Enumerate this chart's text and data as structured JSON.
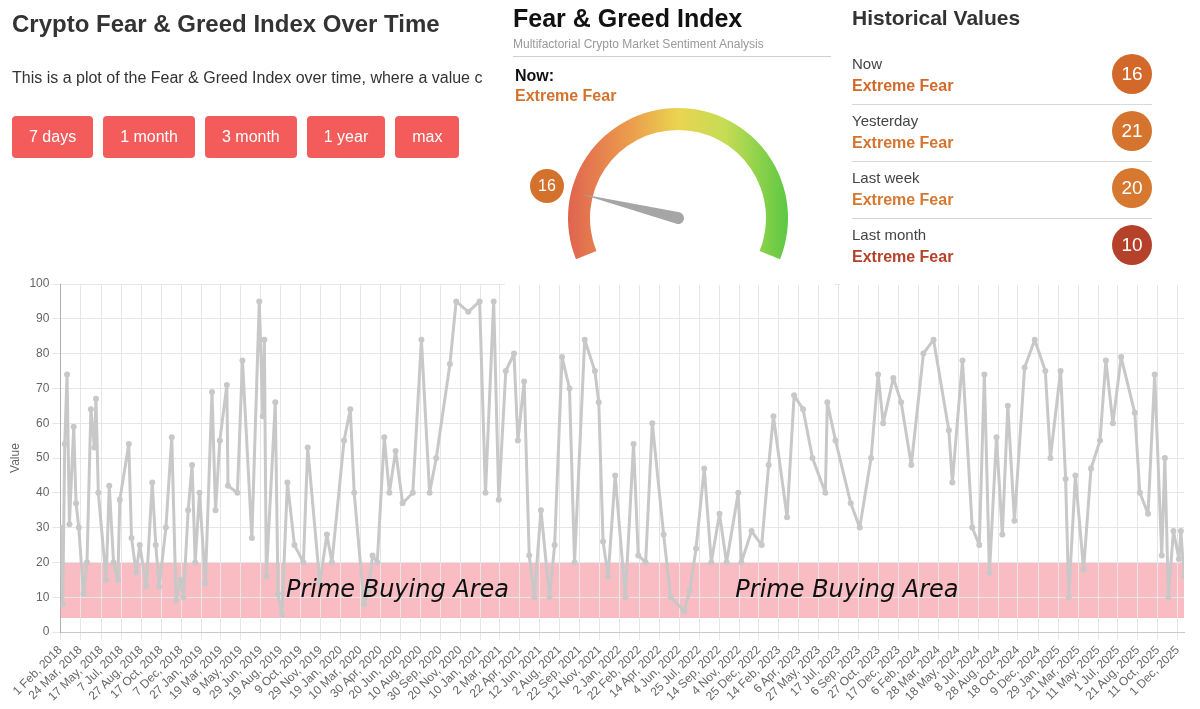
{
  "chart_data": [
    {
      "type": "line",
      "title": "Crypto Fear & Greed Index Over Time",
      "subtitle": "This is a plot of the Fear & Greed Index over time, where a value c",
      "ylabel": "Value",
      "x": [
        "2018-02-01",
        "2018-02-07",
        "2018-02-12",
        "2018-02-18",
        "2018-02-24",
        "2018-03-07",
        "2018-03-13",
        "2018-03-20",
        "2018-04-01",
        "2018-04-10",
        "2018-04-20",
        "2018-04-29",
        "2018-05-03",
        "2018-05-09",
        "2018-05-29",
        "2018-06-06",
        "2018-06-17",
        "2018-06-28",
        "2018-07-03",
        "2018-07-26",
        "2018-08-02",
        "2018-08-14",
        "2018-08-23",
        "2018-09-09",
        "2018-09-24",
        "2018-10-03",
        "2018-10-12",
        "2018-10-29",
        "2018-11-13",
        "2018-11-24",
        "2018-12-05",
        "2018-12-13",
        "2018-12-25",
        "2019-01-04",
        "2019-01-12",
        "2019-01-23",
        "2019-02-07",
        "2019-02-24",
        "2019-03-05",
        "2019-03-16",
        "2019-04-03",
        "2019-04-06",
        "2019-04-30",
        "2019-05-13",
        "2019-06-06",
        "2019-06-25",
        "2019-07-04",
        "2019-07-08",
        "2019-07-13",
        "2019-08-05",
        "2019-08-12",
        "2019-08-22",
        "2019-09-05",
        "2019-09-23",
        "2019-10-16",
        "2019-10-27",
        "2019-11-27",
        "2019-12-15",
        "2019-12-28",
        "2020-01-28",
        "2020-02-13",
        "2020-02-23",
        "2020-03-19",
        "2020-03-30",
        "2020-04-10",
        "2020-04-22",
        "2020-05-10",
        "2020-05-23",
        "2020-06-08",
        "2020-06-26",
        "2020-07-22",
        "2020-08-13",
        "2020-09-03",
        "2020-09-20",
        "2020-10-25",
        "2020-11-10",
        "2020-12-11",
        "2021-01-09",
        "2021-01-24",
        "2021-02-14",
        "2021-02-27",
        "2021-03-17",
        "2021-04-07",
        "2021-04-17",
        "2021-05-03",
        "2021-05-16",
        "2021-05-29",
        "2021-06-15",
        "2021-07-07",
        "2021-07-20",
        "2021-08-08",
        "2021-08-27",
        "2021-09-09",
        "2021-10-05",
        "2021-10-31",
        "2021-11-10",
        "2021-11-21",
        "2021-12-04",
        "2021-12-22",
        "2022-01-17",
        "2022-02-07",
        "2022-02-19",
        "2022-03-10",
        "2022-03-27",
        "2022-04-25",
        "2022-05-13",
        "2022-06-17",
        "2022-07-01",
        "2022-07-17",
        "2022-08-07",
        "2022-08-25",
        "2022-09-15",
        "2022-10-03",
        "2022-11-02",
        "2022-11-10",
        "2022-12-06",
        "2023-01-01",
        "2023-01-19",
        "2023-01-31",
        "2023-03-07",
        "2023-03-25",
        "2023-04-17",
        "2023-05-11",
        "2023-06-13",
        "2023-06-18",
        "2023-07-09",
        "2023-08-17",
        "2023-09-09",
        "2023-10-08",
        "2023-10-26",
        "2023-11-08",
        "2023-12-04",
        "2023-12-24",
        "2024-01-19",
        "2024-02-19",
        "2024-03-16",
        "2024-04-24",
        "2024-05-03",
        "2024-05-29",
        "2024-06-23",
        "2024-07-11",
        "2024-07-24",
        "2024-08-06",
        "2024-08-24",
        "2024-09-08",
        "2024-09-22",
        "2024-10-09",
        "2024-11-04",
        "2024-11-30",
        "2024-12-27",
        "2025-01-09",
        "2025-02-04",
        "2025-02-17",
        "2025-02-25",
        "2025-03-14",
        "2025-04-04",
        "2025-04-23",
        "2025-05-16",
        "2025-05-31",
        "2025-06-18",
        "2025-07-09",
        "2025-08-13",
        "2025-08-26",
        "2025-09-16",
        "2025-10-03",
        "2025-10-21",
        "2025-10-29",
        "2025-11-07",
        "2025-11-20",
        "2025-12-04",
        "2025-12-09",
        "2025-12-17"
      ],
      "values": [
        30,
        8,
        54,
        74,
        31,
        59,
        37,
        30,
        11,
        20,
        64,
        53,
        67,
        40,
        15,
        42,
        20,
        15,
        38,
        54,
        27,
        17,
        25,
        13,
        43,
        25,
        13,
        30,
        56,
        9,
        15,
        10,
        35,
        48,
        20,
        40,
        14,
        69,
        35,
        55,
        71,
        42,
        40,
        78,
        27,
        95,
        62,
        84,
        16,
        66,
        11,
        5,
        43,
        25,
        20,
        53,
        14,
        28,
        20,
        55,
        64,
        40,
        8,
        12,
        22,
        20,
        56,
        40,
        52,
        37,
        40,
        84,
        40,
        50,
        77,
        95,
        92,
        95,
        40,
        95,
        38,
        75,
        80,
        55,
        72,
        22,
        10,
        35,
        10,
        25,
        79,
        70,
        20,
        84,
        75,
        66,
        26,
        16,
        45,
        10,
        54,
        22,
        20,
        60,
        28,
        10,
        6,
        12,
        24,
        47,
        20,
        34,
        20,
        40,
        20,
        29,
        25,
        48,
        62,
        33,
        68,
        64,
        50,
        40,
        66,
        55,
        37,
        30,
        50,
        74,
        60,
        73,
        66,
        48,
        80,
        84,
        58,
        43,
        78,
        30,
        25,
        74,
        17,
        56,
        28,
        65,
        32,
        76,
        84,
        75,
        50,
        75,
        44,
        10,
        45,
        18,
        47,
        55,
        78,
        60,
        79,
        63,
        40,
        34,
        74,
        22,
        50,
        10,
        29,
        21,
        29,
        16
      ],
      "color": "#c8c8c8",
      "marker": "circle",
      "grid": true,
      "xlim": [
        "2018-02-01",
        "2025-12-17"
      ],
      "xticks": [
        {
          "value": "2018-02-01",
          "label": "1 Feb, 2018"
        },
        {
          "value": "2018-03-24",
          "label": "24 Mar, 2018"
        },
        {
          "value": "2018-05-17",
          "label": "17 May, 2018"
        },
        {
          "value": "2018-07-07",
          "label": "7 Jul, 2018"
        },
        {
          "value": "2018-08-27",
          "label": "27 Aug, 2018"
        },
        {
          "value": "2018-10-17",
          "label": "17 Oct, 2018"
        },
        {
          "value": "2018-12-07",
          "label": "7 Dec, 2018"
        },
        {
          "value": "2019-01-27",
          "label": "27 Jan, 2019"
        },
        {
          "value": "2019-03-19",
          "label": "19 Mar, 2019"
        },
        {
          "value": "2019-05-09",
          "label": "9 May, 2019"
        },
        {
          "value": "2019-06-29",
          "label": "29 Jun, 2019"
        },
        {
          "value": "2019-08-19",
          "label": "19 Aug, 2019"
        },
        {
          "value": "2019-10-09",
          "label": "9 Oct, 2019"
        },
        {
          "value": "2019-11-29",
          "label": "29 Nov, 2019"
        },
        {
          "value": "2020-01-19",
          "label": "19 Jan, 2020"
        },
        {
          "value": "2020-03-10",
          "label": "10 Mar, 2020"
        },
        {
          "value": "2020-04-30",
          "label": "30 Apr, 2020"
        },
        {
          "value": "2020-06-20",
          "label": "20 Jun, 2020"
        },
        {
          "value": "2020-08-10",
          "label": "10 Aug, 2020"
        },
        {
          "value": "2020-09-30",
          "label": "30 Sep, 2020"
        },
        {
          "value": "2020-11-20",
          "label": "20 Nov, 2020"
        },
        {
          "value": "2021-01-10",
          "label": "10 Jan, 2021"
        },
        {
          "value": "2021-03-02",
          "label": "2 Mar, 2021"
        },
        {
          "value": "2021-04-22",
          "label": "22 Apr, 2021"
        },
        {
          "value": "2021-06-12",
          "label": "12 Jun, 2021"
        },
        {
          "value": "2021-08-02",
          "label": "2 Aug, 2021"
        },
        {
          "value": "2021-09-22",
          "label": "22 Sep, 2021"
        },
        {
          "value": "2021-11-12",
          "label": "12 Nov, 2021"
        },
        {
          "value": "2022-01-02",
          "label": "2 Jan, 2022"
        },
        {
          "value": "2022-02-22",
          "label": "22 Feb, 2022"
        },
        {
          "value": "2022-04-14",
          "label": "14 Apr, 2022"
        },
        {
          "value": "2022-06-04",
          "label": "4 Jun, 2022"
        },
        {
          "value": "2022-07-25",
          "label": "25 Jul, 2022"
        },
        {
          "value": "2022-09-14",
          "label": "14 Sep, 2022"
        },
        {
          "value": "2022-11-04",
          "label": "4 Nov, 2022"
        },
        {
          "value": "2022-12-25",
          "label": "25 Dec, 2022"
        },
        {
          "value": "2023-02-14",
          "label": "14 Feb, 2023"
        },
        {
          "value": "2023-04-06",
          "label": "6 Apr, 2023"
        },
        {
          "value": "2023-05-27",
          "label": "27 May, 2023"
        },
        {
          "value": "2023-07-17",
          "label": "17 Jul, 2023"
        },
        {
          "value": "2023-09-06",
          "label": "6 Sep, 2023"
        },
        {
          "value": "2023-10-27",
          "label": "27 Oct, 2023"
        },
        {
          "value": "2023-12-17",
          "label": "17 Dec, 2023"
        },
        {
          "value": "2024-02-06",
          "label": "6 Feb, 2024"
        },
        {
          "value": "2024-03-28",
          "label": "28 Mar, 2024"
        },
        {
          "value": "2024-05-18",
          "label": "18 May, 2024"
        },
        {
          "value": "2024-07-08",
          "label": "8 Jul, 2024"
        },
        {
          "value": "2024-08-28",
          "label": "28 Aug, 2024"
        },
        {
          "value": "2024-10-18",
          "label": "18 Oct, 2024"
        },
        {
          "value": "2024-12-09",
          "label": "9 Dec, 2024"
        },
        {
          "value": "2025-01-29",
          "label": "29 Jan, 2025"
        },
        {
          "value": "2025-03-21",
          "label": "21 Mar, 2025"
        },
        {
          "value": "2025-05-11",
          "label": "11 May, 2025"
        },
        {
          "value": "2025-07-01",
          "label": "1 Jul, 2025"
        },
        {
          "value": "2025-08-21",
          "label": "21 Aug, 2025"
        },
        {
          "value": "2025-10-11",
          "label": "11 Oct, 2025"
        },
        {
          "value": "2025-12-01",
          "label": "1 Dec, 2025"
        }
      ],
      "ylim": [
        0,
        100
      ],
      "yticks": [
        0,
        10,
        20,
        30,
        40,
        50,
        60,
        70,
        80,
        90,
        100
      ],
      "bands": [
        {
          "axis": "y",
          "from": 4,
          "to": 20,
          "color": "#f9bcc3"
        }
      ],
      "annotations": [
        "Prime Buying Area",
        "Prime Buying Area"
      ]
    },
    {
      "type": "other",
      "annotations": [
        "7 days",
        "1 month",
        "3 month",
        "1 year",
        "max"
      ]
    },
    {
      "type": "other",
      "title": "Fear & Greed Index",
      "subtitle": "Multifactorial Crypto Market Sentiment Analysis",
      "annotations": [
        "Now:",
        "Extreme Fear"
      ],
      "values": [
        16
      ],
      "data_labels": true,
      "colors": [
        "#d4722d"
      ]
    },
    {
      "type": "other",
      "title": "Historical Values",
      "categories": [
        "Now",
        "Yesterday",
        "Last week",
        "Last month"
      ],
      "values": [
        16,
        21,
        20,
        10
      ],
      "data_labels": true,
      "annotations": [
        "Extreme Fear",
        "Extreme Fear",
        "Extreme Fear",
        "Extreme Fear"
      ],
      "colors": [
        "#d2692b",
        "#d5742f",
        "#d6782f",
        "#b5412a"
      ]
    }
  ]
}
